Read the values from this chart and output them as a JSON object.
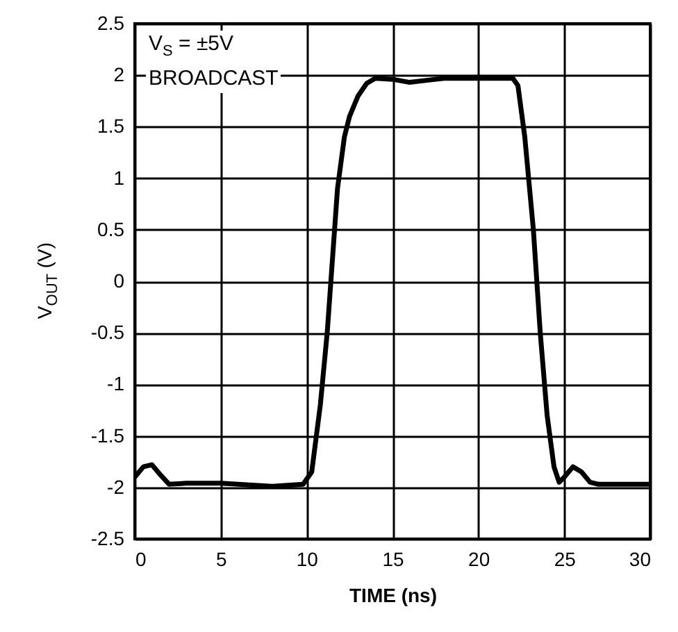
{
  "chart_data": {
    "type": "line",
    "xlabel": "TIME (ns)",
    "ylabel": "V$_{OUT}$ (V)",
    "annotations": [
      "V$_{S}$ = ±5V",
      "BROADCAST"
    ],
    "x": [
      0,
      0.5,
      1,
      1.5,
      2,
      3,
      5,
      7,
      8,
      9.8,
      10.3,
      10.8,
      11.2,
      11.5,
      11.8,
      12.2,
      12.5,
      13,
      13.5,
      14,
      15,
      16,
      17,
      18,
      20,
      22,
      22.3,
      22.7,
      23.2,
      23.6,
      24,
      24.4,
      24.7,
      25,
      25.5,
      26,
      26.5,
      27,
      28,
      30
    ],
    "series": [
      {
        "color": "#000000",
        "values": [
          -1.9,
          -1.8,
          -1.78,
          -1.88,
          -1.97,
          -1.96,
          -1.96,
          -1.98,
          -1.99,
          -1.97,
          -1.85,
          -1.2,
          -0.5,
          0.2,
          0.9,
          1.4,
          1.6,
          1.8,
          1.92,
          1.97,
          1.96,
          1.93,
          1.95,
          1.97,
          1.97,
          1.97,
          1.9,
          1.4,
          0.5,
          -0.5,
          -1.3,
          -1.8,
          -1.95,
          -1.9,
          -1.8,
          -1.85,
          -1.95,
          -1.97,
          -1.97,
          -1.97
        ]
      }
    ],
    "xlim": [
      0,
      30
    ],
    "ylim": [
      -2.5,
      2.5
    ],
    "xticks": [
      0,
      5,
      10,
      15,
      20,
      25,
      30
    ],
    "yticks": [
      -2.5,
      -2,
      -1.5,
      -1,
      -0.5,
      0,
      0.5,
      1,
      1.5,
      2,
      2.5
    ],
    "grid": true,
    "line_style": "solid"
  }
}
